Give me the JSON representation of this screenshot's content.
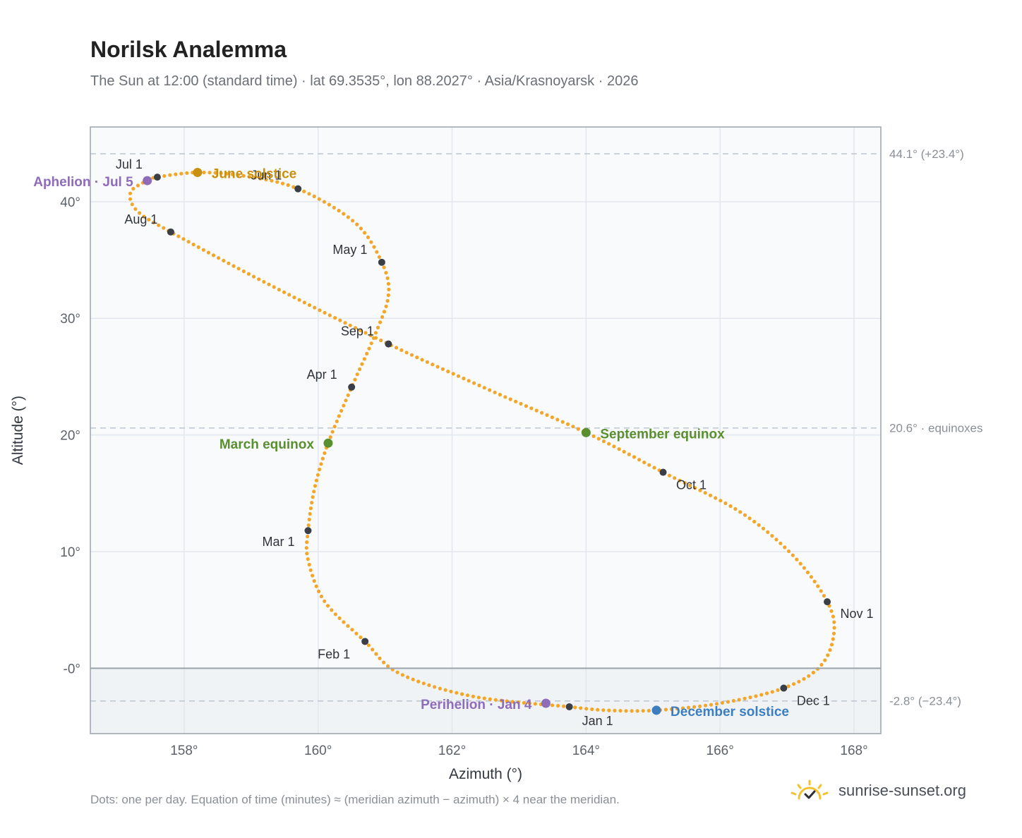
{
  "title": "Norilsk Analemma",
  "subtitle": "The Sun at 12:00 (standard time) · lat 69.3535°, lon 88.2027° · Asia/Krasnoyarsk · 2026",
  "footnote": "Dots: one per day. Equation of time (minutes) ≈ (meridian azimuth − azimuth) × 4 near the meridian.",
  "brand": {
    "name": "sunrise-sunset.org",
    "icon": "sun-logo-icon"
  },
  "colors": {
    "curve": "#f2a62a",
    "month_marker": "#3a3f47",
    "solstice_june": "#c9900f",
    "equinox": "#5a8f2f",
    "solstice_december": "#3c7ec0",
    "apsis": "#8f6cba",
    "plot_bg": "#f8fafc",
    "below_horizon_bg": "#f0f3f6"
  },
  "chart_data": {
    "type": "scatter",
    "xlabel": "Azimuth (°)",
    "ylabel": "Altitude (°)",
    "xlim": [
      156.6,
      168.4
    ],
    "ylim": [
      -5.6,
      46.4
    ],
    "x_ticks": [
      158,
      160,
      162,
      164,
      166,
      168
    ],
    "x_tick_labels": [
      "158°",
      "160°",
      "162°",
      "164°",
      "166°",
      "168°"
    ],
    "y_ticks": [
      0,
      10,
      20,
      30,
      40
    ],
    "y_tick_labels": [
      "-0°",
      "10°",
      "20°",
      "30°",
      "40°"
    ],
    "grid": true,
    "horizon_altitude": 0,
    "reference_lines": [
      {
        "y": 44.1,
        "label": "44.1° (+23.4°)"
      },
      {
        "y": 20.6,
        "label": "20.6° · equinoxes"
      },
      {
        "y": -2.8,
        "label": "-2.8° (−23.4°)"
      }
    ],
    "path_anchors": [
      {
        "az": 163.75,
        "alt": -3.3
      },
      {
        "az": 162.3,
        "alt": -2.4
      },
      {
        "az": 161.2,
        "alt": -0.4
      },
      {
        "az": 160.7,
        "alt": 2.3
      },
      {
        "az": 160.1,
        "alt": 5.7
      },
      {
        "az": 159.85,
        "alt": 9.3
      },
      {
        "az": 159.85,
        "alt": 11.8
      },
      {
        "az": 159.95,
        "alt": 15.5
      },
      {
        "az": 160.15,
        "alt": 19.3
      },
      {
        "az": 160.5,
        "alt": 24.1
      },
      {
        "az": 160.85,
        "alt": 28.6
      },
      {
        "az": 161.05,
        "alt": 32.0
      },
      {
        "az": 160.95,
        "alt": 34.8
      },
      {
        "az": 160.55,
        "alt": 38.2
      },
      {
        "az": 159.7,
        "alt": 41.1
      },
      {
        "az": 158.9,
        "alt": 42.2
      },
      {
        "az": 158.2,
        "alt": 42.5
      },
      {
        "az": 157.6,
        "alt": 42.1
      },
      {
        "az": 157.45,
        "alt": 41.8
      },
      {
        "az": 157.2,
        "alt": 40.8
      },
      {
        "az": 157.3,
        "alt": 39.2
      },
      {
        "az": 157.8,
        "alt": 37.4
      },
      {
        "az": 159.3,
        "alt": 32.8
      },
      {
        "az": 161.05,
        "alt": 27.8
      },
      {
        "az": 162.5,
        "alt": 24.0
      },
      {
        "az": 164.0,
        "alt": 20.2
      },
      {
        "az": 165.15,
        "alt": 16.8
      },
      {
        "az": 166.3,
        "alt": 13.4
      },
      {
        "az": 167.1,
        "alt": 9.6
      },
      {
        "az": 167.6,
        "alt": 5.7
      },
      {
        "az": 167.7,
        "alt": 3.0
      },
      {
        "az": 167.5,
        "alt": 0.2
      },
      {
        "az": 166.95,
        "alt": -1.7
      },
      {
        "az": 166.0,
        "alt": -3.0
      },
      {
        "az": 165.05,
        "alt": -3.6
      },
      {
        "az": 164.3,
        "alt": -3.6
      },
      {
        "az": 163.75,
        "alt": -3.3
      }
    ],
    "month_markers": [
      {
        "label": "Jan 1",
        "az": 163.75,
        "alt": -3.3
      },
      {
        "label": "Feb 1",
        "az": 160.7,
        "alt": 2.3
      },
      {
        "label": "Mar 1",
        "az": 159.85,
        "alt": 11.8
      },
      {
        "label": "Apr 1",
        "az": 160.5,
        "alt": 24.1
      },
      {
        "label": "May 1",
        "az": 160.95,
        "alt": 34.8
      },
      {
        "label": "Jun 1",
        "az": 159.7,
        "alt": 41.1
      },
      {
        "label": "Jul 1",
        "az": 157.6,
        "alt": 42.1
      },
      {
        "label": "Aug 1",
        "az": 157.8,
        "alt": 37.4
      },
      {
        "label": "Sep 1",
        "az": 161.05,
        "alt": 27.8
      },
      {
        "label": "Oct 1",
        "az": 165.15,
        "alt": 16.8
      },
      {
        "label": "Nov 1",
        "az": 167.6,
        "alt": 5.7
      },
      {
        "label": "Dec 1",
        "az": 166.95,
        "alt": -1.7
      }
    ],
    "events": [
      {
        "label": "June solstice",
        "az": 158.2,
        "alt": 42.5,
        "color": "#c9900f"
      },
      {
        "label": "Aphelion · Jul 5",
        "az": 157.45,
        "alt": 41.8,
        "color": "#8f6cba"
      },
      {
        "label": "March equinox",
        "az": 160.15,
        "alt": 19.3,
        "color": "#5a8f2f"
      },
      {
        "label": "September equinox",
        "az": 164.0,
        "alt": 20.2,
        "color": "#5a8f2f"
      },
      {
        "label": "December solstice",
        "az": 165.05,
        "alt": -3.6,
        "color": "#3c7ec0"
      },
      {
        "label": "Perihelion · Jan 4",
        "az": 163.4,
        "alt": -3.0,
        "color": "#8f6cba"
      }
    ]
  }
}
